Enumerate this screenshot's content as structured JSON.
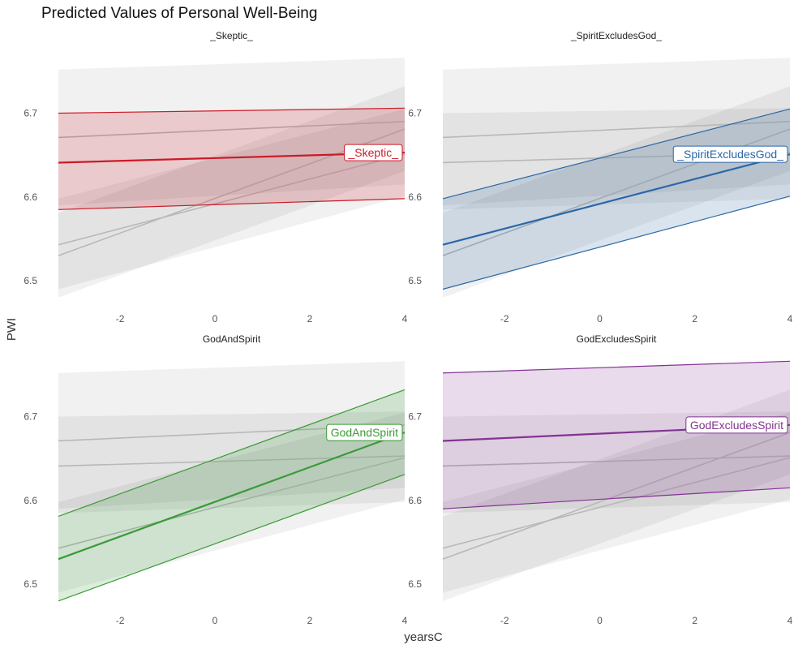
{
  "chart_data": {
    "type": "line",
    "title": "Predicted Values of Personal Well-Being",
    "xlabel": "yearsC",
    "ylabel": "PWI",
    "xlim": [
      -3.3,
      4
    ],
    "ylim": [
      6.475,
      6.775
    ],
    "x_ticks": [
      "-2",
      "0",
      "2",
      "4"
    ],
    "y_ticks": [
      "6.5",
      "6.6",
      "6.7"
    ],
    "grid": false,
    "legend": "none",
    "x": [
      -3.3,
      4
    ],
    "series": [
      {
        "name": "_Skeptic_",
        "color": "#cc1a26",
        "values": [
          6.641,
          6.653
        ],
        "lower": [
          6.585,
          6.598
        ],
        "upper": [
          6.7,
          6.706
        ]
      },
      {
        "name": "_SpiritExcludesGod_",
        "color": "#2c67a6",
        "values": [
          6.543,
          6.651
        ],
        "lower": [
          6.49,
          6.601
        ],
        "upper": [
          6.598,
          6.705
        ]
      },
      {
        "name": "GodAndSpirit",
        "color": "#3a9a36",
        "values": [
          6.53,
          6.681
        ],
        "lower": [
          6.48,
          6.631
        ],
        "upper": [
          6.581,
          6.732
        ]
      },
      {
        "name": "GodExcludesSpirit",
        "color": "#833393",
        "values": [
          6.671,
          6.69
        ],
        "lower": [
          6.59,
          6.615
        ],
        "upper": [
          6.752,
          6.766
        ]
      }
    ]
  }
}
